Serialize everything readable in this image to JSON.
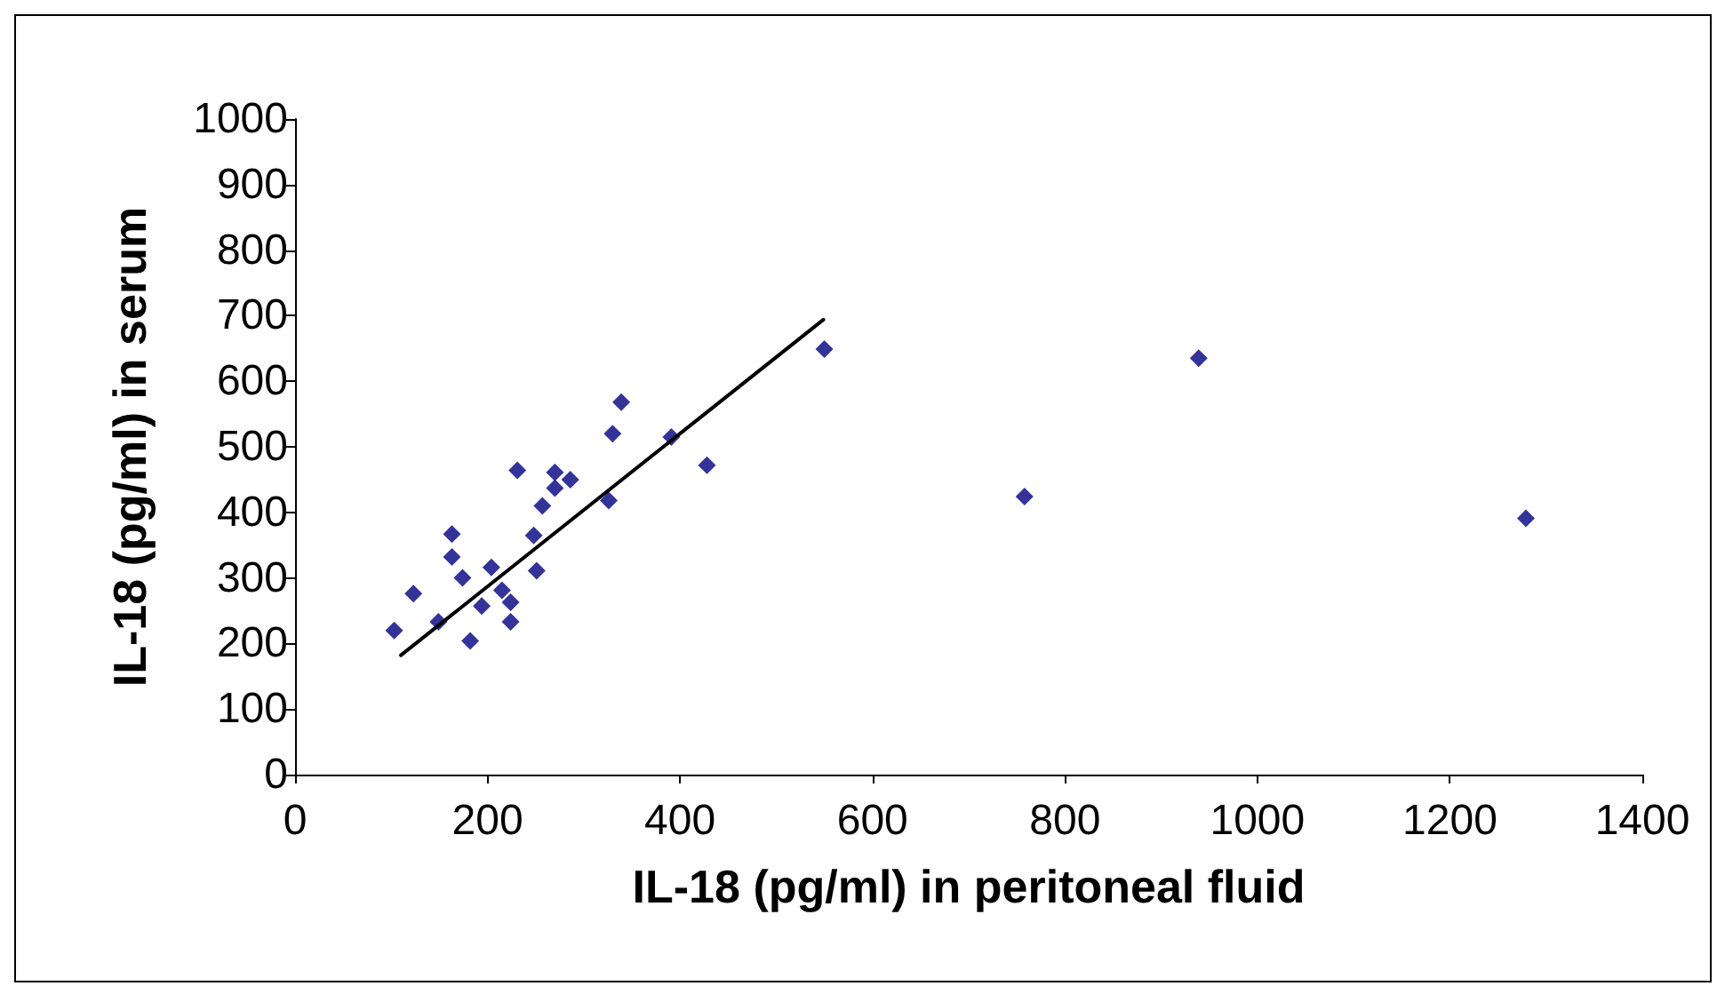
{
  "chart_data": {
    "type": "scatter",
    "xlabel": "IL-18 (pg/ml) in peritoneal fluid",
    "ylabel": "IL-18 (pg/ml) in serum",
    "xlim": [
      0,
      1400
    ],
    "xticks": [
      0,
      200,
      400,
      600,
      800,
      1000,
      1200,
      1400
    ],
    "ylim": [
      0,
      1000
    ],
    "yticks": [
      0,
      100,
      200,
      300,
      400,
      500,
      600,
      700,
      800,
      900,
      1000
    ],
    "grid": false,
    "marker": "diamond",
    "series": [
      {
        "color": "#000080",
        "x": [
          103,
          123,
          149,
          163,
          163,
          174,
          182,
          194,
          204,
          215,
          224,
          224,
          231,
          248,
          251,
          257,
          270,
          286,
          270,
          326,
          330,
          339,
          391,
          428,
          550,
          758,
          939,
          1279
        ],
        "values": [
          220,
          276,
          233,
          367,
          332,
          300,
          204,
          257,
          316,
          281,
          263,
          233,
          464,
          365,
          311,
          410,
          461,
          450,
          437,
          418,
          520,
          568,
          515,
          472,
          649,
          424,
          635,
          391
        ]
      },
      {
        "type": "line",
        "color": "#000000",
        "marker": "none",
        "line_style": "solid",
        "x": [
          110,
          549
        ],
        "values": [
          182,
          694
        ]
      }
    ]
  }
}
